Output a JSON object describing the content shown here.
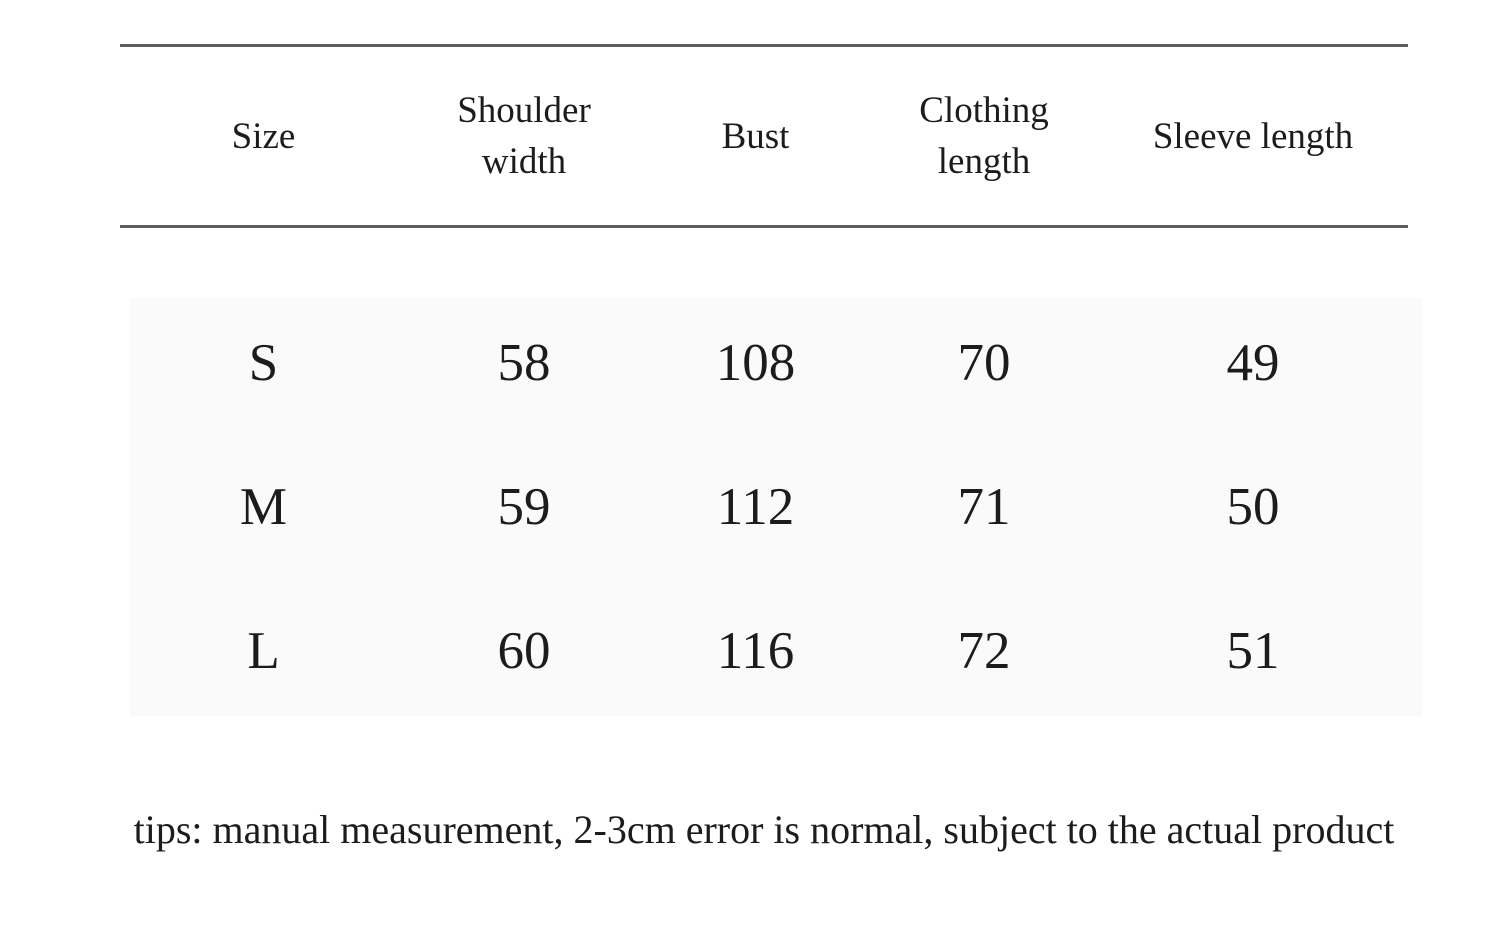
{
  "size_chart": {
    "columns": [
      "Size",
      "Shoulder width",
      "Bust",
      "Clothing length",
      "Sleeve length"
    ],
    "rows": [
      [
        "S",
        "58",
        "108",
        "70",
        "49"
      ],
      [
        "M",
        "59",
        "112",
        "71",
        "50"
      ],
      [
        "L",
        "60",
        "116",
        "72",
        "51"
      ]
    ]
  },
  "tips": "tips: manual measurement, 2-3cm error is normal, subject to the actual product",
  "colors": {
    "background": "#ffffff",
    "text": "#1c1c1c",
    "rule": "#5e5e5e",
    "body_band": "#fafafa"
  },
  "chart_data": {
    "type": "table",
    "columns": [
      "Size",
      "Shoulder width",
      "Bust",
      "Clothing length",
      "Sleeve length"
    ],
    "rows": [
      {
        "size": "S",
        "shoulder_width": 58,
        "bust": 108,
        "clothing_length": 70,
        "sleeve_length": 49
      },
      {
        "size": "M",
        "shoulder_width": 59,
        "bust": 112,
        "clothing_length": 71,
        "sleeve_length": 50
      },
      {
        "size": "L",
        "shoulder_width": 60,
        "bust": 116,
        "clothing_length": 72,
        "sleeve_length": 51
      }
    ],
    "title": "",
    "notes": "tips: manual measurement, 2-3cm error is normal, subject to the actual product"
  }
}
